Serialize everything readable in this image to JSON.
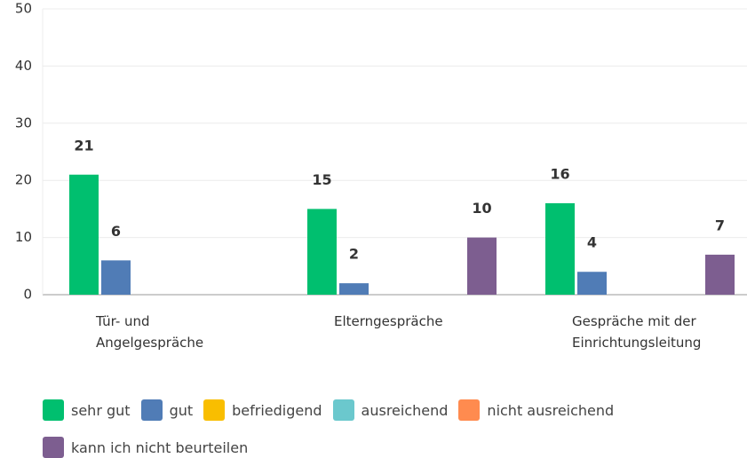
{
  "chart_data": {
    "type": "bar",
    "categories": [
      "Tür- und Angelgespräche",
      "Elterngespräche",
      "Gespräche mit der Einrichtungsleitung"
    ],
    "series": [
      {
        "name": "sehr gut",
        "color": "#00bf6f",
        "values": [
          21,
          15,
          16
        ]
      },
      {
        "name": "gut",
        "color": "#507cb6",
        "values": [
          6,
          2,
          4
        ]
      },
      {
        "name": "befriedigend",
        "color": "#f9be00",
        "values": [
          0,
          0,
          0
        ]
      },
      {
        "name": "ausreichend",
        "color": "#6bc8cd",
        "values": [
          0,
          0,
          0
        ]
      },
      {
        "name": "nicht ausreichend",
        "color": "#ff8b4f",
        "values": [
          0,
          0,
          0
        ]
      },
      {
        "name": "kann ich nicht beurteilen",
        "color": "#7d5e90",
        "values": [
          0,
          10,
          7
        ]
      }
    ],
    "ylim": [
      0,
      50
    ],
    "yticks": [
      0,
      10,
      20,
      30,
      40,
      50
    ],
    "grid": true
  }
}
